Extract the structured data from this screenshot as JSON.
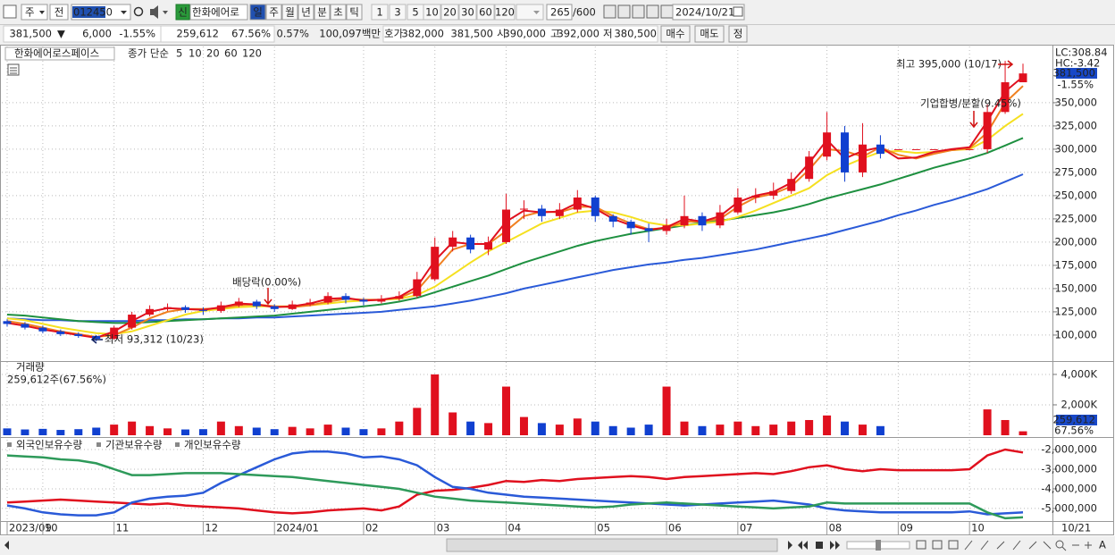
{
  "toolbar": {
    "period_select": "주",
    "compare": "전",
    "code": "012450",
    "new_badge": "신",
    "stock_name": "한화에어로",
    "period_tabs": [
      "일",
      "주",
      "월",
      "년",
      "분",
      "초",
      "틱"
    ],
    "intervals": [
      "1",
      "3",
      "5",
      "10",
      "20",
      "30",
      "60",
      "120"
    ],
    "count": "265",
    "count_max": "/600",
    "date": "2024/10/21"
  },
  "quote_bar": {
    "price": "381,500",
    "direction": "▼",
    "change": "6,000",
    "change_rate": "-1.55%",
    "volume": "259,612",
    "volume_ratio": "67.56%",
    "turnover": "0.57%",
    "amount": "100,097백만",
    "ask_label": "호가",
    "ask": "382,000",
    "bid": "381,500",
    "open_label": "시",
    "open": "390,000",
    "high_label": "고",
    "high": "392,000",
    "low_label": "저",
    "low": "380,500",
    "buy": "매수",
    "sell": "매도",
    "correct": "정"
  },
  "chart_data": [
    {
      "type": "candlestick",
      "title": "한화에어로스페이스",
      "legend_title": "종가 단순",
      "up_color": "#e0101e",
      "down_color": "#1040d0",
      "open": [
        115000,
        112000,
        108000,
        104000,
        101000,
        99000,
        96000,
        108000,
        122000,
        128000,
        130000,
        127000,
        126000,
        132000,
        136000,
        131000,
        128000,
        133000,
        135000,
        142000,
        138000,
        136000,
        139000,
        142000,
        160000,
        195000,
        205000,
        192000,
        200000,
        235000,
        236000,
        228000,
        235000,
        248000,
        228000,
        222000,
        215000,
        212000,
        218000,
        228000,
        218000,
        232000,
        248000,
        250000,
        255000,
        268000,
        292000,
        318000,
        275000,
        305000,
        300000,
        300000,
        300000,
        300000,
        300000,
        300000,
        340000,
        372000
      ],
      "high": [
        117000,
        114000,
        110000,
        106000,
        103000,
        100000,
        110000,
        125000,
        132000,
        134000,
        132000,
        130000,
        136000,
        140000,
        138000,
        133000,
        137000,
        139000,
        146000,
        145000,
        140000,
        143000,
        147000,
        168000,
        205000,
        212000,
        208000,
        206000,
        252000,
        245000,
        240000,
        242000,
        256000,
        250000,
        230000,
        224000,
        220000,
        225000,
        250000,
        232000,
        240000,
        258000,
        258000,
        264000,
        275000,
        298000,
        340000,
        325000,
        328000,
        315000,
        300000,
        300000,
        300000,
        300000,
        300000,
        348000,
        395000,
        392000
      ],
      "low": [
        109000,
        106000,
        102000,
        99000,
        97000,
        93312,
        95000,
        106000,
        120000,
        126000,
        124000,
        122000,
        124000,
        130000,
        128000,
        125000,
        127000,
        131000,
        133000,
        134000,
        132000,
        134000,
        137000,
        140000,
        158000,
        190000,
        188000,
        186000,
        198000,
        225000,
        222000,
        225000,
        232000,
        222000,
        216000,
        208000,
        200000,
        208000,
        215000,
        212000,
        215000,
        230000,
        242000,
        246000,
        252000,
        265000,
        288000,
        265000,
        270000,
        290000,
        300000,
        300000,
        300000,
        300000,
        300000,
        296000,
        338000,
        372000
      ],
      "close": [
        112000,
        108000,
        104000,
        101000,
        99000,
        96000,
        108000,
        122000,
        128000,
        130000,
        127000,
        126000,
        132000,
        136000,
        131000,
        128000,
        133000,
        135000,
        142000,
        138000,
        136000,
        139000,
        142000,
        160000,
        195000,
        205000,
        192000,
        200000,
        235000,
        236000,
        228000,
        235000,
        248000,
        228000,
        222000,
        215000,
        212000,
        218000,
        228000,
        218000,
        232000,
        248000,
        250000,
        255000,
        268000,
        292000,
        318000,
        275000,
        305000,
        295000,
        300000,
        300000,
        300000,
        300000,
        300000,
        340000,
        372000,
        381500
      ],
      "series": [
        {
          "name": "5",
          "color": "#e0101e",
          "values": [
            113000,
            110000,
            106000,
            103000,
            100000,
            97000,
            104000,
            115000,
            125000,
            129000,
            128000,
            127000,
            130000,
            134000,
            133000,
            130000,
            131000,
            134000,
            139000,
            140000,
            137000,
            138000,
            141000,
            152000,
            180000,
            200000,
            198000,
            198000,
            222000,
            234000,
            232000,
            233000,
            242000,
            236000,
            225000,
            218000,
            213000,
            216000,
            225000,
            222000,
            228000,
            243000,
            250000,
            254000,
            264000,
            285000,
            310000,
            290000,
            298000,
            302000,
            290000,
            291000,
            297000,
            300000,
            302000,
            330000,
            362000,
            378000
          ]
        },
        {
          "name": "10",
          "color": "#f08020",
          "values": [
            115000,
            112000,
            108000,
            104000,
            101000,
            98000,
            100000,
            108000,
            118000,
            125000,
            128000,
            128000,
            129000,
            132000,
            133000,
            131000,
            130000,
            132000,
            136000,
            139000,
            138000,
            138000,
            140000,
            148000,
            170000,
            192000,
            198000,
            198000,
            212000,
            228000,
            233000,
            232000,
            238000,
            238000,
            228000,
            220000,
            214000,
            215000,
            222000,
            222000,
            225000,
            238000,
            248000,
            252000,
            260000,
            278000,
            300000,
            298000,
            292000,
            302000,
            294000,
            290000,
            295000,
            299000,
            301000,
            318000,
            350000,
            368000
          ]
        },
        {
          "name": "20",
          "color": "#f5e020",
          "values": [
            118000,
            116000,
            112000,
            108000,
            105000,
            102000,
            101000,
            104000,
            110000,
            116000,
            122000,
            126000,
            128000,
            130000,
            131000,
            131000,
            131000,
            132000,
            134000,
            136000,
            137000,
            138000,
            139000,
            143000,
            152000,
            165000,
            178000,
            190000,
            200000,
            210000,
            220000,
            226000,
            232000,
            234000,
            232000,
            227000,
            221000,
            218000,
            218000,
            220000,
            222000,
            227000,
            234000,
            242000,
            250000,
            258000,
            272000,
            282000,
            290000,
            297000,
            298000,
            296000,
            297000,
            299000,
            300000,
            310000,
            325000,
            338000
          ]
        },
        {
          "name": "60",
          "color": "#1e9040",
          "values": [
            122000,
            121000,
            119000,
            117000,
            115000,
            114000,
            113000,
            113000,
            114000,
            115000,
            116000,
            117000,
            118000,
            119000,
            120000,
            121000,
            123000,
            125000,
            127000,
            129000,
            131000,
            133000,
            136000,
            140000,
            146000,
            152000,
            158000,
            164000,
            171000,
            178000,
            184000,
            190000,
            196000,
            201000,
            205000,
            209000,
            212000,
            215000,
            218000,
            221000,
            223000,
            226000,
            229000,
            232000,
            236000,
            241000,
            247000,
            252000,
            257000,
            262000,
            268000,
            274000,
            280000,
            285000,
            290000,
            296000,
            304000,
            312000
          ]
        },
        {
          "name": "120",
          "color": "#2a5ad8",
          "values": [
            118000,
            117000,
            116000,
            116000,
            115000,
            115000,
            115000,
            115000,
            116000,
            116000,
            117000,
            117000,
            118000,
            118000,
            119000,
            119000,
            120000,
            121000,
            122000,
            123000,
            124000,
            125000,
            127000,
            129000,
            131000,
            134000,
            137000,
            141000,
            145000,
            150000,
            154000,
            158000,
            162000,
            166000,
            170000,
            173000,
            176000,
            178000,
            181000,
            183000,
            186000,
            189000,
            192000,
            196000,
            200000,
            204000,
            208000,
            213000,
            218000,
            223000,
            229000,
            234000,
            240000,
            245000,
            251000,
            257000,
            265000,
            273000
          ]
        }
      ],
      "ylim": [
        73000,
        410500
      ],
      "yticks": [
        {
          "value": 100000,
          "label": "100,000"
        },
        {
          "value": 125000,
          "label": "125,000"
        },
        {
          "value": 150000,
          "label": "150,000"
        },
        {
          "value": 175000,
          "label": "175,000"
        },
        {
          "value": 200000,
          "label": "200,000"
        },
        {
          "value": 225000,
          "label": "225,000"
        },
        {
          "value": 250000,
          "label": "250,000"
        },
        {
          "value": 275000,
          "label": "275,000"
        },
        {
          "value": 300000,
          "label": "300,000"
        },
        {
          "value": 325000,
          "label": "325,000"
        },
        {
          "value": 350000,
          "label": "350,000"
        }
      ],
      "grid": true,
      "annotations": [
        "최고 395,000 (10/17)",
        "최저 93,312 (10/23)",
        "배당락(0.00%)",
        "기업합병/분할(9.45%)"
      ],
      "lc_label": "LC:308.84",
      "hc_label": "HC:-3.42",
      "current_label": "381,500",
      "current_change": "-1.55%"
    },
    {
      "type": "bar",
      "title": "거래량",
      "subtitle": "259,612주(67.56%)",
      "values": [
        450000,
        380000,
        420000,
        350000,
        400000,
        500000,
        700000,
        900000,
        600000,
        450000,
        380000,
        400000,
        900000,
        600000,
        500000,
        400000,
        550000,
        450000,
        700000,
        500000,
        400000,
        450000,
        900000,
        1800000,
        4000000,
        1500000,
        900000,
        800000,
        3200000,
        1200000,
        800000,
        700000,
        1100000,
        900000,
        600000,
        500000,
        700000,
        3200000,
        900000,
        600000,
        700000,
        900000,
        600000,
        700000,
        900000,
        1000000,
        1300000,
        900000,
        700000,
        600000,
        null,
        null,
        null,
        null,
        null,
        1700000,
        1000000,
        259612
      ],
      "ylim": [
        0,
        4820000
      ],
      "yticks": [
        {
          "value": 2000000,
          "label": "2,000K"
        },
        {
          "value": 4000000,
          "label": "4,000K"
        }
      ],
      "grid": true,
      "current_label": "259,612",
      "current_ratio": "67.56%"
    },
    {
      "type": "line",
      "categories": [
        "2023/09",
        null,
        "10",
        null,
        null,
        null,
        "11",
        null,
        null,
        null,
        null,
        "12",
        null,
        null,
        null,
        "2024/01",
        null,
        null,
        null,
        null,
        "02",
        null,
        null,
        null,
        "03",
        null,
        null,
        null,
        "04",
        null,
        null,
        null,
        null,
        "05",
        null,
        null,
        null,
        "06",
        null,
        null,
        null,
        "07",
        null,
        null,
        null,
        null,
        "08",
        null,
        null,
        null,
        "09",
        null,
        null,
        null,
        "10",
        null,
        null,
        null
      ],
      "series": [
        {
          "name": "외국인보유수량",
          "color": "#e0101e",
          "values": [
            -4700000,
            -4650000,
            -4600000,
            -4550000,
            -4600000,
            -4650000,
            -4700000,
            -4750000,
            -4800000,
            -4750000,
            -4850000,
            -4900000,
            -4950000,
            -5000000,
            -5100000,
            -5200000,
            -5250000,
            -5200000,
            -5100000,
            -5050000,
            -5000000,
            -5100000,
            -4900000,
            -4300000,
            -4100000,
            -4050000,
            -3950000,
            -3800000,
            -3600000,
            -3650000,
            -3550000,
            -3600000,
            -3500000,
            -3450000,
            -3400000,
            -3350000,
            -3400000,
            -3500000,
            -3400000,
            -3350000,
            -3300000,
            -3250000,
            -3200000,
            -3250000,
            -3100000,
            -2900000,
            -2800000,
            -3000000,
            -3100000,
            -3000000,
            -3050000,
            -3050000,
            -3050000,
            -3050000,
            -3000000,
            -2300000,
            -2000000,
            -2150000
          ]
        },
        {
          "name": "기관보유수량",
          "color": "#2a5ad8",
          "values": [
            -4850000,
            -5000000,
            -5200000,
            -5300000,
            -5350000,
            -5350000,
            -5200000,
            -4700000,
            -4500000,
            -4400000,
            -4350000,
            -4200000,
            -3700000,
            -3300000,
            -2900000,
            -2500000,
            -2200000,
            -2100000,
            -2100000,
            -2200000,
            -2400000,
            -2350000,
            -2500000,
            -2800000,
            -3400000,
            -3900000,
            -4000000,
            -4200000,
            -4300000,
            -4400000,
            -4450000,
            -4500000,
            -4550000,
            -4600000,
            -4650000,
            -4700000,
            -4750000,
            -4800000,
            -4850000,
            -4800000,
            -4750000,
            -4700000,
            -4650000,
            -4600000,
            -4700000,
            -4800000,
            -5000000,
            -5100000,
            -5150000,
            -5200000,
            -5200000,
            -5200000,
            -5200000,
            -5200000,
            -5150000,
            -5300000,
            -5250000,
            -5200000
          ]
        },
        {
          "name": "개인보유수량",
          "color": "#2e9a5a",
          "values": [
            -2300000,
            -2350000,
            -2400000,
            -2500000,
            -2550000,
            -2700000,
            -3000000,
            -3300000,
            -3300000,
            -3250000,
            -3200000,
            -3200000,
            -3200000,
            -3250000,
            -3300000,
            -3350000,
            -3400000,
            -3500000,
            -3600000,
            -3700000,
            -3800000,
            -3900000,
            -4000000,
            -4200000,
            -4400000,
            -4500000,
            -4600000,
            -4650000,
            -4700000,
            -4750000,
            -4800000,
            -4850000,
            -4900000,
            -4950000,
            -4900000,
            -4800000,
            -4750000,
            -4700000,
            -4750000,
            -4800000,
            -4850000,
            -4900000,
            -4950000,
            -5000000,
            -4950000,
            -4900000,
            -4700000,
            -4750000,
            -4750000,
            -4750000,
            -4750000,
            -4750000,
            -4750000,
            -4750000,
            -4750000,
            -5200000,
            -5500000,
            -5450000
          ]
        }
      ],
      "ylim": [
        -5640000,
        -1500000
      ],
      "yticks": [
        {
          "value": -2000000,
          "label": "-2,000,000"
        },
        {
          "value": -3000000,
          "label": "-3,000,000"
        },
        {
          "value": -4000000,
          "label": "-4,000,000"
        },
        {
          "value": -5000000,
          "label": "-5,000,000"
        }
      ],
      "grid": true,
      "cursor_label": "10/21"
    }
  ]
}
